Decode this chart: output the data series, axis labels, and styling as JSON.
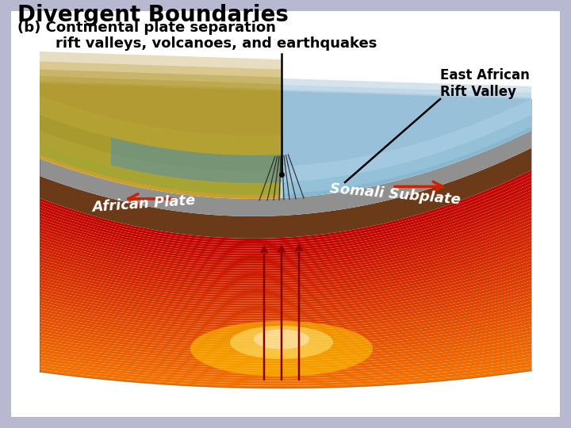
{
  "title_main": "Divergent Boundaries",
  "title_sub": "(b) Continental plate separation",
  "subtitle2": "rift valleys, volcanoes, and earthquakes",
  "label_east_african": "East African\nRift Valley",
  "label_african_plate": "African Plate",
  "label_somali": "Somali Subplate",
  "bg_color": "#b8b8d0",
  "white_bg": "#ffffff",
  "brown_lith": "#6b3a18",
  "gray_rock": "#909090",
  "terrain_left_base": "#c8a840",
  "terrain_right_base": "#90c0d8",
  "mantle_bright": "#ff8800",
  "mantle_dark": "#cc2200",
  "fault_color": "#222222",
  "arrow_color": "#cc2200",
  "text_white": "#ffffff",
  "text_black": "#000000",
  "annotation_line": "#000000"
}
